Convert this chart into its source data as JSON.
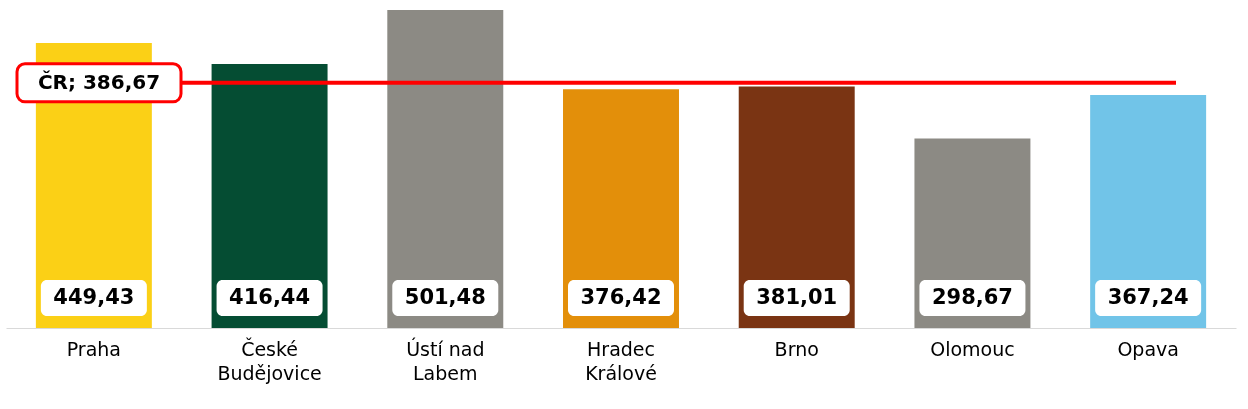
{
  "chart_data": {
    "type": "bar",
    "categories": [
      "Praha",
      "České Budějovice",
      "Ústí nad Labem",
      "Hradec Králové",
      "Brno",
      "Olomouc",
      "Opava"
    ],
    "values": [
      449.43,
      416.44,
      501.48,
      376.42,
      381.01,
      298.67,
      367.24
    ],
    "colors": [
      "#fbd016",
      "#054d33",
      "#8c8a84",
      "#e38f0a",
      "#7a3413",
      "#8c8a84",
      "#71c4e8"
    ],
    "value_labels": [
      "449,43",
      "416,44",
      "501,48",
      "376,42",
      "381,01",
      "298,67",
      "367,24"
    ],
    "ref_lines": [
      {
        "axis": "y",
        "value": 386.67,
        "label": "ČR; 386,67",
        "color": "#ff0000"
      }
    ]
  }
}
